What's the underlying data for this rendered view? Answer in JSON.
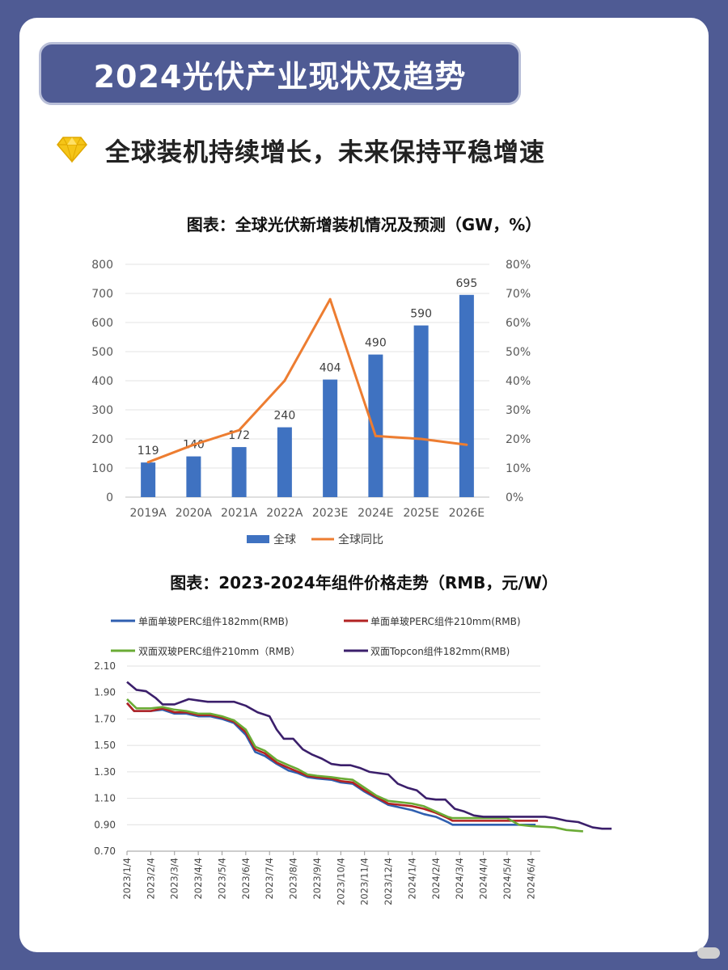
{
  "page": {
    "title": "2024光伏产业现状及趋势",
    "subheading": "全球装机持续增长，未来保持平稳增速",
    "gem_icon": "gem-icon",
    "colors": {
      "frame": "#4f5b94",
      "gem": "#f5c518"
    }
  },
  "chart_data": [
    {
      "type": "bar",
      "title": "图表：全球光伏新增装机情况及预测（GW，%）",
      "categories": [
        "2019A",
        "2020A",
        "2021A",
        "2022A",
        "2023E",
        "2024E",
        "2025E",
        "2026E"
      ],
      "series": [
        {
          "name": "全球",
          "type": "bar",
          "axis": "left",
          "color": "#3f72c1",
          "values": [
            119,
            140,
            172,
            240,
            404,
            490,
            590,
            695
          ]
        },
        {
          "name": "全球同比",
          "type": "line",
          "axis": "right",
          "color": "#ed7d31",
          "values": [
            12,
            18,
            23,
            40,
            68,
            21,
            20,
            18
          ]
        }
      ],
      "left_axis": {
        "min": 0,
        "max": 800,
        "ticks": [
          "0",
          "100",
          "200",
          "300",
          "400",
          "500",
          "600",
          "700",
          "800"
        ]
      },
      "right_axis": {
        "min": 0,
        "max": 80,
        "ticks": [
          "0%",
          "10%",
          "20%",
          "30%",
          "40%",
          "50%",
          "60%",
          "70%",
          "80%"
        ]
      },
      "grid": true,
      "legend": "bottom"
    },
    {
      "type": "line",
      "title": "图表：2023-2024年组件价格走势（RMB，元/W）",
      "y_axis": {
        "min": 0.7,
        "max": 2.1,
        "ticks": [
          "0.70",
          "0.90",
          "1.10",
          "1.30",
          "1.50",
          "1.70",
          "1.90",
          "2.10"
        ]
      },
      "x_labels": [
        "2023/1/4",
        "2023/2/4",
        "2023/3/4",
        "2023/4/4",
        "2023/5/4",
        "2023/6/4",
        "2023/7/4",
        "2023/8/4",
        "2023/9/4",
        "2023/10/4",
        "2023/11/4",
        "2023/12/4",
        "2024/1/4",
        "2024/2/4",
        "2024/3/4",
        "2024/4/4",
        "2024/5/4",
        "2024/6/4"
      ],
      "legend": "top",
      "grid": true,
      "series": [
        {
          "name": "单面单玻PERC组件182mm(RMB)",
          "color": "#2f5fb0",
          "points": [
            [
              0,
              1.82
            ],
            [
              0.3,
              1.76
            ],
            [
              1,
              1.76
            ],
            [
              1.5,
              1.77
            ],
            [
              2,
              1.74
            ],
            [
              2.5,
              1.74
            ],
            [
              3,
              1.72
            ],
            [
              3.5,
              1.72
            ],
            [
              4,
              1.7
            ],
            [
              4.5,
              1.67
            ],
            [
              5,
              1.58
            ],
            [
              5.4,
              1.45
            ],
            [
              5.8,
              1.42
            ],
            [
              6.3,
              1.36
            ],
            [
              6.8,
              1.31
            ],
            [
              7.2,
              1.29
            ],
            [
              7.6,
              1.26
            ],
            [
              8,
              1.25
            ],
            [
              8.6,
              1.24
            ],
            [
              9,
              1.22
            ],
            [
              9.5,
              1.21
            ],
            [
              10,
              1.15
            ],
            [
              10.5,
              1.1
            ],
            [
              11,
              1.05
            ],
            [
              11.5,
              1.03
            ],
            [
              12,
              1.01
            ],
            [
              12.5,
              0.98
            ],
            [
              13,
              0.96
            ],
            [
              13.5,
              0.92
            ],
            [
              13.7,
              0.9
            ],
            [
              14,
              0.9
            ],
            [
              16,
              0.9
            ],
            [
              17.2,
              0.9
            ]
          ]
        },
        {
          "name": "单面单玻PERC组件210mm(RMB)",
          "color": "#b22222",
          "points": [
            [
              0,
              1.82
            ],
            [
              0.3,
              1.76
            ],
            [
              1,
              1.76
            ],
            [
              1.5,
              1.78
            ],
            [
              2,
              1.75
            ],
            [
              2.5,
              1.75
            ],
            [
              3,
              1.73
            ],
            [
              3.5,
              1.73
            ],
            [
              4,
              1.71
            ],
            [
              4.5,
              1.68
            ],
            [
              5,
              1.6
            ],
            [
              5.4,
              1.47
            ],
            [
              5.8,
              1.44
            ],
            [
              6.3,
              1.37
            ],
            [
              6.8,
              1.33
            ],
            [
              7.2,
              1.3
            ],
            [
              7.6,
              1.27
            ],
            [
              8,
              1.26
            ],
            [
              8.6,
              1.25
            ],
            [
              9,
              1.23
            ],
            [
              9.5,
              1.22
            ],
            [
              10,
              1.16
            ],
            [
              10.5,
              1.11
            ],
            [
              11,
              1.06
            ],
            [
              11.5,
              1.05
            ],
            [
              12,
              1.04
            ],
            [
              12.5,
              1.02
            ],
            [
              13,
              0.99
            ],
            [
              13.5,
              0.95
            ],
            [
              13.7,
              0.93
            ],
            [
              14,
              0.93
            ],
            [
              16,
              0.93
            ],
            [
              17.3,
              0.93
            ]
          ]
        },
        {
          "name": "双面双玻PERC组件210mm（RMB）",
          "color": "#6aab35",
          "points": [
            [
              0,
              1.85
            ],
            [
              0.4,
              1.78
            ],
            [
              1,
              1.78
            ],
            [
              1.5,
              1.79
            ],
            [
              2,
              1.77
            ],
            [
              2.5,
              1.76
            ],
            [
              3,
              1.74
            ],
            [
              3.5,
              1.74
            ],
            [
              4,
              1.72
            ],
            [
              4.5,
              1.69
            ],
            [
              5,
              1.62
            ],
            [
              5.4,
              1.49
            ],
            [
              5.8,
              1.46
            ],
            [
              6.3,
              1.39
            ],
            [
              6.8,
              1.35
            ],
            [
              7.2,
              1.32
            ],
            [
              7.6,
              1.28
            ],
            [
              8,
              1.27
            ],
            [
              8.6,
              1.26
            ],
            [
              9,
              1.25
            ],
            [
              9.5,
              1.24
            ],
            [
              10,
              1.18
            ],
            [
              10.5,
              1.12
            ],
            [
              11,
              1.08
            ],
            [
              11.5,
              1.07
            ],
            [
              12,
              1.06
            ],
            [
              12.5,
              1.04
            ],
            [
              13,
              1.0
            ],
            [
              13.5,
              0.96
            ],
            [
              13.7,
              0.95
            ],
            [
              14,
              0.95
            ],
            [
              15,
              0.95
            ],
            [
              16,
              0.95
            ],
            [
              16.5,
              0.9
            ],
            [
              17,
              0.89
            ],
            [
              18,
              0.88
            ],
            [
              18.5,
              0.86
            ],
            [
              19.2,
              0.85
            ]
          ]
        },
        {
          "name": "双面Topcon组件182mm(RMB)",
          "color": "#3b1f6b",
          "points": [
            [
              0,
              1.98
            ],
            [
              0.4,
              1.92
            ],
            [
              0.8,
              1.91
            ],
            [
              1.2,
              1.86
            ],
            [
              1.5,
              1.81
            ],
            [
              2,
              1.81
            ],
            [
              2.6,
              1.85
            ],
            [
              3,
              1.84
            ],
            [
              3.4,
              1.83
            ],
            [
              4,
              1.83
            ],
            [
              4.5,
              1.83
            ],
            [
              5,
              1.8
            ],
            [
              5.5,
              1.75
            ],
            [
              6,
              1.72
            ],
            [
              6.3,
              1.62
            ],
            [
              6.6,
              1.55
            ],
            [
              7,
              1.55
            ],
            [
              7.4,
              1.47
            ],
            [
              7.8,
              1.43
            ],
            [
              8.2,
              1.4
            ],
            [
              8.6,
              1.36
            ],
            [
              9,
              1.35
            ],
            [
              9.4,
              1.35
            ],
            [
              9.8,
              1.33
            ],
            [
              10.2,
              1.3
            ],
            [
              10.6,
              1.29
            ],
            [
              11,
              1.28
            ],
            [
              11.4,
              1.21
            ],
            [
              11.8,
              1.18
            ],
            [
              12.2,
              1.16
            ],
            [
              12.6,
              1.1
            ],
            [
              13,
              1.09
            ],
            [
              13.4,
              1.09
            ],
            [
              13.8,
              1.02
            ],
            [
              14.2,
              1.0
            ],
            [
              14.6,
              0.97
            ],
            [
              15,
              0.96
            ],
            [
              16,
              0.96
            ],
            [
              17,
              0.96
            ],
            [
              17.6,
              0.96
            ],
            [
              18,
              0.95
            ],
            [
              18.5,
              0.93
            ],
            [
              19,
              0.92
            ],
            [
              19.6,
              0.88
            ],
            [
              20,
              0.87
            ],
            [
              20.4,
              0.87
            ]
          ]
        }
      ]
    }
  ]
}
